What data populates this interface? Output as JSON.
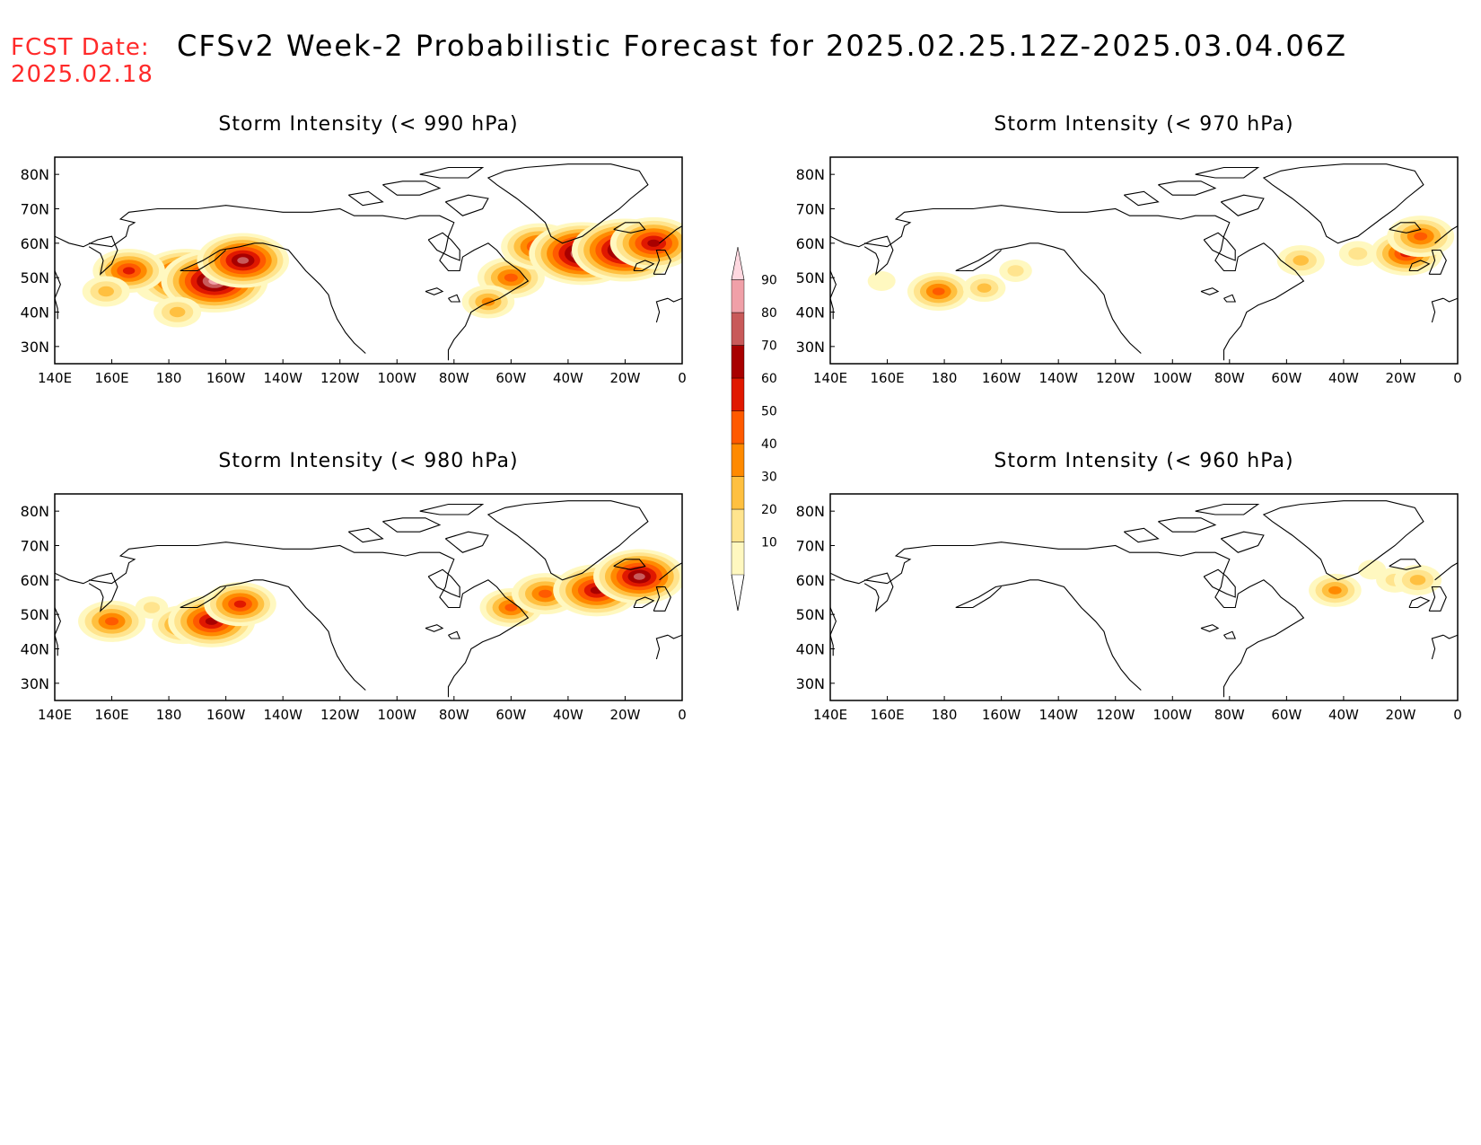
{
  "header": {
    "fcst_label": "FCST Date:",
    "fcst_date": "2025.02.18",
    "title": "CFSv2 Week-2 Probabilistic Forecast for 2025.02.25.12Z-2025.03.04.06Z"
  },
  "axes": {
    "lon_labels": [
      "140E",
      "160E",
      "180",
      "160W",
      "140W",
      "120W",
      "100W",
      "80W",
      "60W",
      "40W",
      "20W",
      "0"
    ],
    "lat_labels": [
      "80N",
      "70N",
      "60N",
      "50N",
      "40N",
      "30N"
    ],
    "lon_range": [
      140,
      360
    ],
    "lat_range": [
      25,
      85
    ]
  },
  "colors": {
    "scale": [
      "#fff8c0",
      "#ffe48e",
      "#ffc040",
      "#ff8a00",
      "#ff5a00",
      "#e01800",
      "#a80000",
      "#c85a5a",
      "#f0a0a8",
      "#ffd8e0"
    ],
    "coast": "#000000"
  },
  "colorbar": {
    "labels": [
      "10",
      "20",
      "30",
      "40",
      "50",
      "60",
      "70",
      "80",
      "90"
    ]
  },
  "panels": [
    {
      "id": "p990",
      "title": "Storm Intensity (< 990 hPa)",
      "blobs": [
        {
          "lon": 178,
          "lat": 48,
          "p": 0.4
        },
        {
          "lon": 186,
          "lat": 50,
          "p": 0.8
        },
        {
          "lon": 196,
          "lat": 49,
          "p": 0.9
        },
        {
          "lon": 206,
          "lat": 55,
          "p": 0.75
        },
        {
          "lon": 166,
          "lat": 52,
          "p": 0.55
        },
        {
          "lon": 158,
          "lat": 46,
          "p": 0.3
        },
        {
          "lon": 183,
          "lat": 40,
          "p": 0.3
        },
        {
          "lon": 300,
          "lat": 50,
          "p": 0.5
        },
        {
          "lon": 292,
          "lat": 43,
          "p": 0.35
        },
        {
          "lon": 310,
          "lat": 59,
          "p": 0.6
        },
        {
          "lon": 325,
          "lat": 57,
          "p": 0.9
        },
        {
          "lon": 340,
          "lat": 58,
          "p": 0.9
        },
        {
          "lon": 350,
          "lat": 60,
          "p": 0.7
        }
      ]
    },
    {
      "id": "p970",
      "title": "Storm Intensity (< 970 hPa)",
      "blobs": [
        {
          "lon": 178,
          "lat": 46,
          "p": 0.45
        },
        {
          "lon": 194,
          "lat": 47,
          "p": 0.25
        },
        {
          "lon": 205,
          "lat": 52,
          "p": 0.15
        },
        {
          "lon": 158,
          "lat": 49,
          "p": 0.1
        },
        {
          "lon": 305,
          "lat": 55,
          "p": 0.3
        },
        {
          "lon": 325,
          "lat": 57,
          "p": 0.2
        },
        {
          "lon": 342,
          "lat": 57,
          "p": 0.55
        },
        {
          "lon": 347,
          "lat": 62,
          "p": 0.5
        }
      ]
    },
    {
      "id": "p980",
      "title": "Storm Intensity (< 980 hPa)",
      "blobs": [
        {
          "lon": 160,
          "lat": 48,
          "p": 0.5
        },
        {
          "lon": 174,
          "lat": 52,
          "p": 0.15
        },
        {
          "lon": 185,
          "lat": 47,
          "p": 0.45
        },
        {
          "lon": 195,
          "lat": 48,
          "p": 0.7
        },
        {
          "lon": 205,
          "lat": 53,
          "p": 0.55
        },
        {
          "lon": 300,
          "lat": 52,
          "p": 0.45
        },
        {
          "lon": 312,
          "lat": 56,
          "p": 0.5
        },
        {
          "lon": 330,
          "lat": 57,
          "p": 0.7
        },
        {
          "lon": 345,
          "lat": 61,
          "p": 0.75
        }
      ]
    },
    {
      "id": "p960",
      "title": "Storm Intensity (< 960 hPa)",
      "blobs": [
        {
          "lon": 317,
          "lat": 57,
          "p": 0.35
        },
        {
          "lon": 338,
          "lat": 60,
          "p": 0.2
        },
        {
          "lon": 346,
          "lat": 60,
          "p": 0.3
        },
        {
          "lon": 330,
          "lat": 63,
          "p": 0.1
        }
      ]
    }
  ]
}
